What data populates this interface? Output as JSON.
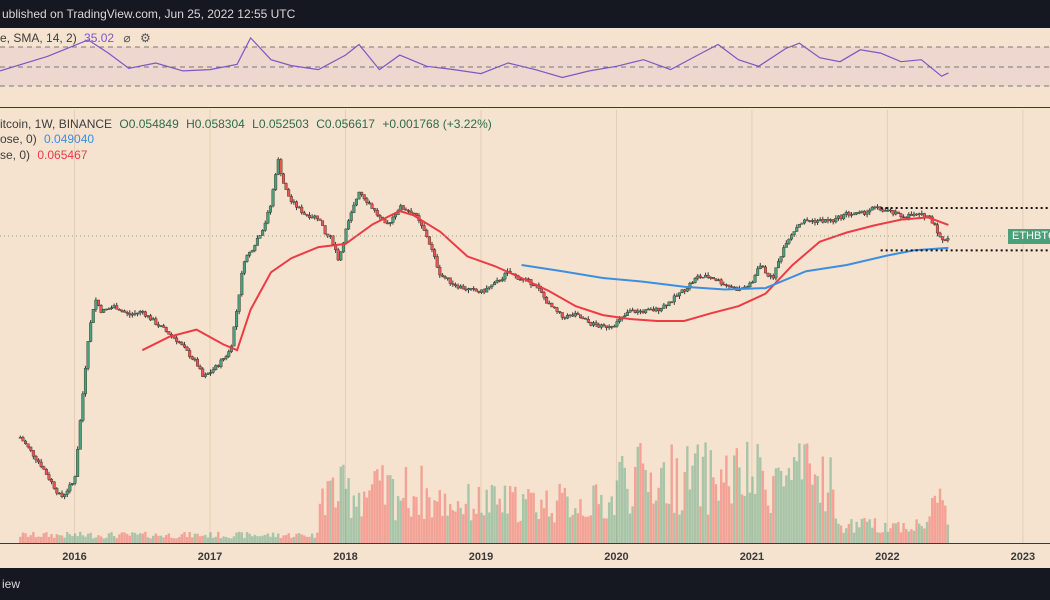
{
  "header": {
    "publish_text": "ublished on TradingView.com, Jun 25, 2022 12:55 UTC"
  },
  "footer": {
    "brand_text": "iew"
  },
  "rsi": {
    "label": "e, SMA, 14, 2)",
    "value": "35.02",
    "icons": [
      "eye-slash-icon",
      "settings-icon"
    ]
  },
  "main_legend": {
    "symbol": "itcoin, 1W, BINANCE",
    "open": "O0.054849",
    "high": "H0.058304",
    "low": "L0.052503",
    "close": "C0.056617",
    "change": "+0.001768 (+3.22%)"
  },
  "ma_blue": {
    "label": "ose, 0)",
    "value": "0.049040",
    "color": "#3b8fe0"
  },
  "ma_red": {
    "label": "se, 0)",
    "value": "0.065467",
    "color": "#ec3b44"
  },
  "price_tag": {
    "text": "ETHBTC",
    "color": "#4aa079"
  },
  "colors": {
    "background": "#f6e3cf",
    "up": "#4aa079",
    "down": "#ef5350",
    "rsi_line": "#7e57c2",
    "bar": "#151821"
  },
  "chart_data": {
    "type": "line",
    "title": "",
    "x_ticks": [
      "2016",
      "2017",
      "2018",
      "2019",
      "2020",
      "2021",
      "2022",
      "2023"
    ],
    "x_range": [
      2015.45,
      2023.2
    ],
    "price_range": [
      0.0018,
      0.158
    ],
    "series": [
      {
        "name": "",
        "kind": "close",
        "x": [
          2015.6,
          2015.75,
          2015.9,
          2016.0,
          2016.1,
          2016.15,
          2016.2,
          2016.3,
          2016.4,
          2016.5,
          2016.6,
          2016.75,
          2016.9,
          2016.95,
          2017.05,
          2017.15,
          2017.2,
          2017.25,
          2017.3,
          2017.4,
          2017.45,
          2017.5,
          2017.55,
          2017.6,
          2017.7,
          2017.8,
          2017.85,
          2017.9,
          2017.95,
          2018.0,
          2018.1,
          2018.2,
          2018.3,
          2018.4,
          2018.5,
          2018.6,
          2018.7,
          2018.8,
          2018.9,
          2019.0,
          2019.1,
          2019.2,
          2019.3,
          2019.4,
          2019.5,
          2019.6,
          2019.7,
          2019.8,
          2019.9,
          2020.0,
          2020.1,
          2020.2,
          2020.3,
          2020.4,
          2020.5,
          2020.6,
          2020.7,
          2020.8,
          2020.9,
          2021.0,
          2021.05,
          2021.15,
          2021.25,
          2021.35,
          2021.4,
          2021.5,
          2021.6,
          2021.7,
          2021.8,
          2021.9,
          2022.0,
          2022.1,
          2022.2,
          2022.3,
          2022.35,
          2022.4,
          2022.45
        ],
        "y": [
          0.0045,
          0.0032,
          0.0021,
          0.0026,
          0.0155,
          0.026,
          0.022,
          0.0235,
          0.021,
          0.022,
          0.019,
          0.0155,
          0.0115,
          0.0095,
          0.011,
          0.0135,
          0.023,
          0.042,
          0.047,
          0.065,
          0.085,
          0.151,
          0.105,
          0.088,
          0.075,
          0.072,
          0.058,
          0.055,
          0.042,
          0.06,
          0.101,
          0.081,
          0.064,
          0.082,
          0.077,
          0.057,
          0.035,
          0.031,
          0.029,
          0.028,
          0.031,
          0.036,
          0.033,
          0.031,
          0.024,
          0.0205,
          0.021,
          0.019,
          0.018,
          0.019,
          0.022,
          0.022,
          0.0225,
          0.025,
          0.029,
          0.034,
          0.034,
          0.031,
          0.029,
          0.031,
          0.04,
          0.033,
          0.053,
          0.067,
          0.069,
          0.069,
          0.069,
          0.0755,
          0.075,
          0.081,
          0.078,
          0.073,
          0.074,
          0.0735,
          0.066,
          0.053,
          0.0566
        ]
      },
      {
        "name": "",
        "kind": "ma_red",
        "x": [
          2016.5,
          2016.7,
          2016.9,
          2017.1,
          2017.2,
          2017.3,
          2017.45,
          2017.6,
          2017.8,
          2018.0,
          2018.2,
          2018.4,
          2018.5,
          2018.7,
          2018.9,
          2019.1,
          2019.3,
          2019.5,
          2019.7,
          2019.9,
          2020.1,
          2020.3,
          2020.5,
          2020.7,
          2020.9,
          2021.1,
          2021.3,
          2021.5,
          2021.7,
          2021.9,
          2022.1,
          2022.3,
          2022.45
        ],
        "y": [
          0.0135,
          0.016,
          0.0175,
          0.0145,
          0.0135,
          0.0225,
          0.036,
          0.043,
          0.0495,
          0.0515,
          0.066,
          0.078,
          0.074,
          0.06,
          0.044,
          0.039,
          0.0335,
          0.0285,
          0.0235,
          0.021,
          0.02,
          0.0195,
          0.0195,
          0.0215,
          0.0235,
          0.0275,
          0.0395,
          0.053,
          0.0595,
          0.065,
          0.07,
          0.072,
          0.0655
        ]
      },
      {
        "name": "",
        "kind": "ma_blue",
        "x": [
          2019.3,
          2019.6,
          2019.9,
          2020.2,
          2020.5,
          2020.8,
          2021.1,
          2021.4,
          2021.7,
          2022.0,
          2022.2,
          2022.45
        ],
        "y": [
          0.0395,
          0.0365,
          0.0335,
          0.032,
          0.03,
          0.029,
          0.0295,
          0.0365,
          0.0395,
          0.0445,
          0.0475,
          0.049
        ]
      }
    ],
    "levels": [
      0.081,
      0.0475
    ],
    "rsi": {
      "x": [
        2015.45,
        2015.8,
        2016.1,
        2016.25,
        2016.4,
        2016.6,
        2016.8,
        2017.0,
        2017.2,
        2017.3,
        2017.45,
        2017.6,
        2017.8,
        2018.0,
        2018.1,
        2018.25,
        2018.4,
        2018.6,
        2018.8,
        2019.0,
        2019.2,
        2019.4,
        2019.6,
        2019.8,
        2020.0,
        2020.2,
        2020.4,
        2020.6,
        2020.75,
        2020.9,
        2021.05,
        2021.25,
        2021.35,
        2021.5,
        2021.65,
        2021.8,
        2021.95,
        2022.1,
        2022.25,
        2022.4,
        2022.45
      ],
      "y": [
        38,
        60,
        85,
        65,
        42,
        50,
        38,
        40,
        48,
        88,
        55,
        46,
        40,
        62,
        78,
        40,
        62,
        45,
        40,
        34,
        50,
        40,
        28,
        38,
        45,
        55,
        40,
        62,
        78,
        55,
        45,
        72,
        80,
        58,
        52,
        70,
        65,
        52,
        55,
        30,
        35
      ]
    },
    "volume_range": [
      0,
      100
    ]
  }
}
